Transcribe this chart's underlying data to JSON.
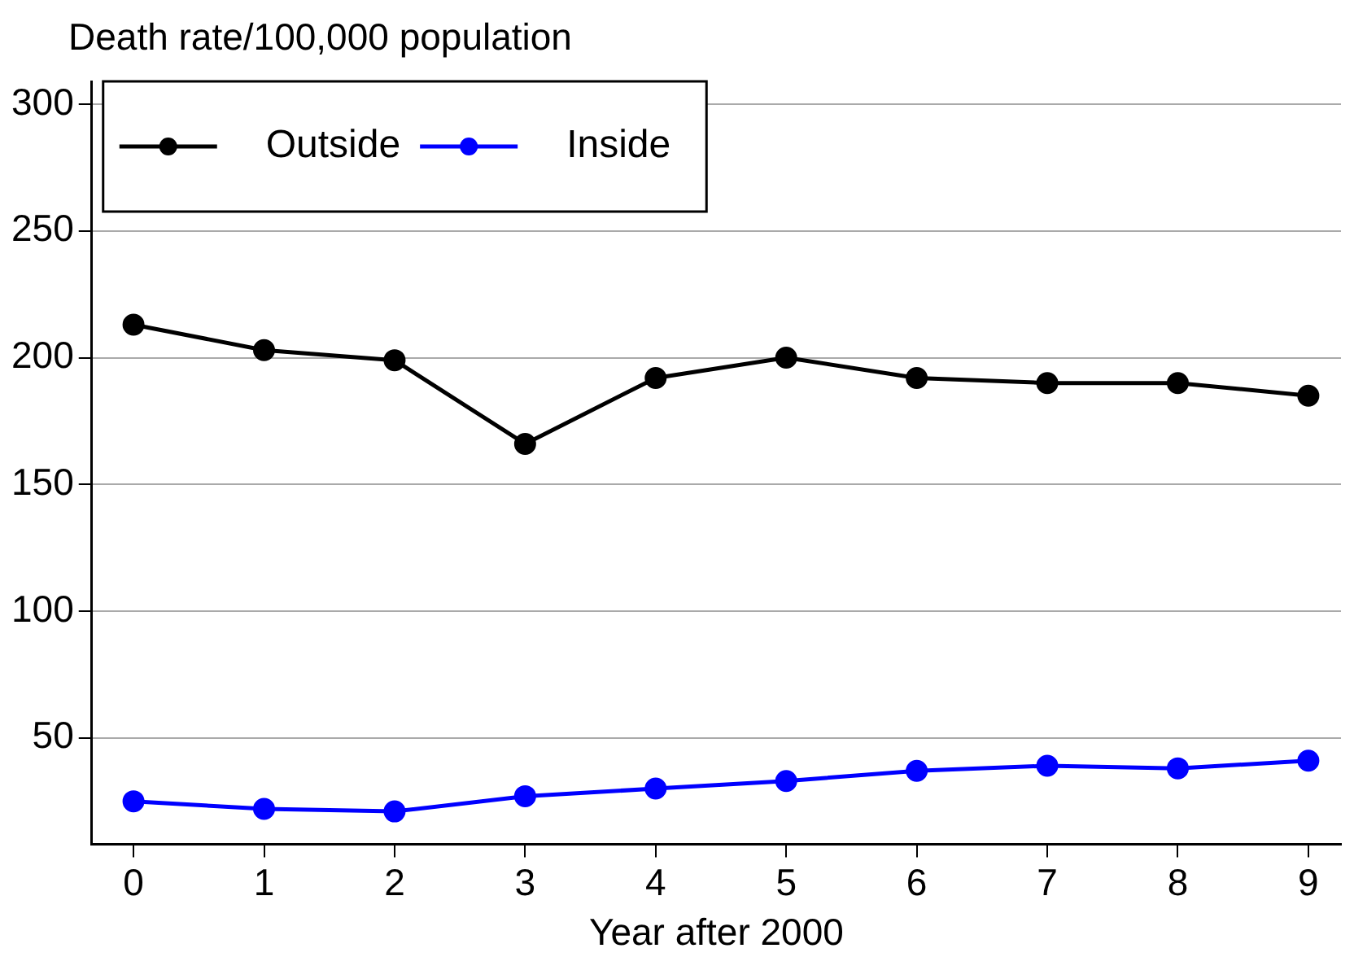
{
  "chart_data": {
    "type": "line",
    "ylabel": "Death rate/100,000 population",
    "xlabel": "Year after 2000",
    "x": [
      0,
      1,
      2,
      3,
      4,
      5,
      6,
      7,
      8,
      9
    ],
    "series": [
      {
        "name": "Outside",
        "color": "#000000",
        "values": [
          213,
          203,
          199,
          166,
          192,
          200,
          192,
          190,
          190,
          185
        ]
      },
      {
        "name": "Inside",
        "color": "#0000ff",
        "values": [
          25,
          22,
          21,
          27,
          30,
          33,
          37,
          39,
          38,
          41
        ]
      }
    ],
    "xlim": [
      -0.32,
      9.25
    ],
    "xticks": [
      0,
      1,
      2,
      3,
      4,
      5,
      6,
      7,
      8,
      9
    ],
    "ylim": [
      8,
      309
    ],
    "yticks": [
      50,
      100,
      150,
      200,
      250,
      300
    ],
    "grid": "y",
    "legend": "top left",
    "marker": "circle",
    "line_style": "solid"
  }
}
